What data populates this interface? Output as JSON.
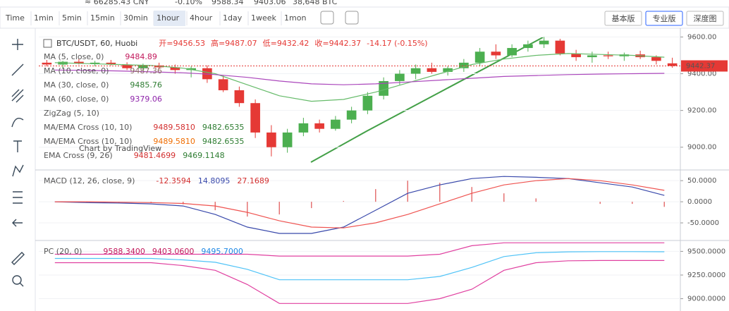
{
  "ticker": [
    "≈ 66285.43 CNY",
    "-0.10%",
    "9588.34",
    "9403.06",
    "38,648 BTC"
  ],
  "toolbar": {
    "timeframes": [
      "Time",
      "1min",
      "5min",
      "15min",
      "30min",
      "1hour",
      "4hour",
      "1day",
      "1week",
      "1mon"
    ],
    "active": "1hour",
    "versions": [
      "基本版",
      "专业版",
      "深度图"
    ],
    "active_version": "专业版"
  },
  "chart": {
    "type": "candlestick",
    "symbol": "BTC/USDT, 60, Huobi",
    "ohlc_legend": [
      {
        "text": "开=9456.53"
      },
      {
        "text": "高=9487.07"
      },
      {
        "text": "低=9432.42"
      },
      {
        "text": "收=9442.37"
      },
      {
        "text": "-14.17 (-0.15%)"
      }
    ],
    "indicators": [
      {
        "label": "MA (5, close, 0)",
        "values": [
          {
            "text": "9484.89",
            "color": "#c2185b"
          }
        ]
      },
      {
        "label": "MA (10, close, 0)",
        "values": [
          {
            "text": "9487.36",
            "color": "#8d6e63"
          }
        ]
      },
      {
        "label": "MA (30, close, 0)",
        "values": [
          {
            "text": "9485.76",
            "color": "#2e7d32"
          }
        ]
      },
      {
        "label": "MA (60, close, 0)",
        "values": [
          {
            "text": "9379.06",
            "color": "#8e24aa"
          }
        ]
      },
      {
        "label": "ZigZag (5, 10)",
        "values": []
      },
      {
        "label": "MA/EMA Cross (10, 10)",
        "values": [
          {
            "text": "9489.5810",
            "color": "#d32f2f"
          },
          {
            "text": "9482.6535",
            "color": "#2e7d32"
          }
        ]
      },
      {
        "label": "MA/EMA Cross (10, 10)",
        "values": [
          {
            "text": "9489.5810",
            "color": "#ef6c00"
          },
          {
            "text": "9482.6535",
            "color": "#2e7d32"
          }
        ]
      },
      {
        "label": "EMA Cross (9, 26)",
        "values": [
          {
            "text": "9481.4699",
            "color": "#d32f2f"
          },
          {
            "text": "9469.1148",
            "color": "#2e7d32"
          }
        ]
      }
    ],
    "watermark": "Chart by TradingView",
    "ylim": [
      8880,
      9640
    ],
    "yticks": [
      {
        "value": 9600,
        "label": "9600.00"
      },
      {
        "value": 9400,
        "label": "9400.00"
      },
      {
        "value": 9200,
        "label": "9200.00"
      },
      {
        "value": 9000,
        "label": "9000.00"
      }
    ],
    "last_price": {
      "value": 9442.37,
      "label": "9442.37"
    },
    "up_color": "#4caf50",
    "down_color": "#e53935",
    "candles": [
      [
        9460,
        9475,
        9440,
        9450
      ],
      [
        9450,
        9470,
        9430,
        9465
      ],
      [
        9465,
        9480,
        9450,
        9455
      ],
      [
        9455,
        9470,
        9440,
        9460
      ],
      [
        9460,
        9475,
        9445,
        9450
      ],
      [
        9450,
        9462,
        9420,
        9430
      ],
      [
        9430,
        9455,
        9415,
        9445
      ],
      [
        9445,
        9460,
        9425,
        9435
      ],
      [
        9435,
        9450,
        9400,
        9420
      ],
      [
        9420,
        9440,
        9380,
        9430
      ],
      [
        9430,
        9445,
        9350,
        9370
      ],
      [
        9370,
        9390,
        9300,
        9310
      ],
      [
        9310,
        9330,
        9220,
        9240
      ],
      [
        9240,
        9260,
        9050,
        9080
      ],
      [
        9080,
        9120,
        8950,
        9000
      ],
      [
        9000,
        9100,
        8970,
        9080
      ],
      [
        9080,
        9160,
        9060,
        9130
      ],
      [
        9130,
        9150,
        9080,
        9100
      ],
      [
        9100,
        9170,
        9090,
        9150
      ],
      [
        9150,
        9220,
        9130,
        9200
      ],
      [
        9200,
        9300,
        9180,
        9280
      ],
      [
        9280,
        9380,
        9260,
        9360
      ],
      [
        9360,
        9420,
        9340,
        9400
      ],
      [
        9400,
        9450,
        9370,
        9430
      ],
      [
        9430,
        9460,
        9400,
        9410
      ],
      [
        9410,
        9440,
        9390,
        9430
      ],
      [
        9430,
        9480,
        9410,
        9460
      ],
      [
        9460,
        9540,
        9440,
        9520
      ],
      [
        9520,
        9560,
        9480,
        9500
      ],
      [
        9500,
        9560,
        9490,
        9540
      ],
      [
        9540,
        9580,
        9520,
        9560
      ],
      [
        9560,
        9600,
        9540,
        9580
      ],
      [
        9580,
        9590,
        9500,
        9510
      ],
      [
        9510,
        9530,
        9470,
        9490
      ],
      [
        9490,
        9520,
        9460,
        9500
      ],
      [
        9500,
        9520,
        9480,
        9495
      ],
      [
        9495,
        9515,
        9470,
        9505
      ],
      [
        9505,
        9525,
        9480,
        9490
      ],
      [
        9490,
        9500,
        9450,
        9470
      ],
      [
        9456.53,
        9487.07,
        9432.42,
        9442.37
      ]
    ],
    "series": [
      {
        "name": "MA (30, close, 0)",
        "color": "#66bb6a",
        "values": [
          9460,
          9455,
          9450,
          9445,
          9430,
          9400,
          9340,
          9280,
          9250,
          9260,
          9300,
          9350,
          9400,
          9450,
          9480,
          9500,
          9510,
          9505,
          9500,
          9490
        ]
      },
      {
        "name": "MA (60, close, 0)",
        "color": "#ab47bc",
        "values": [
          9420,
          9418,
          9415,
          9410,
          9405,
          9395,
          9380,
          9360,
          9345,
          9340,
          9345,
          9355,
          9365,
          9375,
          9385,
          9390,
          9395,
          9398,
          9400,
          9402
        ]
      }
    ]
  },
  "macd": {
    "type": "line",
    "label": "MACD (12, 26, close, 9)",
    "values": [
      {
        "text": "-12.3594",
        "color": "#d32f2f"
      },
      {
        "text": "14.8095",
        "color": "#3949ab"
      },
      {
        "text": "27.1689",
        "color": "#d32f2f"
      }
    ],
    "ylim": [
      -90,
      72
    ],
    "yticks": [
      {
        "value": 50,
        "label": "50.0000"
      },
      {
        "value": 0,
        "label": "0.0000"
      },
      {
        "value": -50,
        "label": "-50.0000"
      }
    ],
    "histogram": {
      "color": "#e57373",
      "values": [
        0,
        -2,
        -2,
        -3,
        -6,
        -20,
        -35,
        -30,
        -15,
        2,
        30,
        50,
        45,
        35,
        20,
        8,
        0,
        -5,
        -5,
        -12
      ]
    },
    "series": [
      {
        "name": "MACD",
        "color": "#3949ab",
        "values": [
          0,
          -2,
          -3,
          -5,
          -10,
          -30,
          -60,
          -75,
          -75,
          -60,
          -20,
          20,
          40,
          55,
          60,
          58,
          55,
          45,
          35,
          15
        ]
      },
      {
        "name": "Signal",
        "color": "#ef5350",
        "values": [
          0,
          0,
          -1,
          -2,
          -4,
          -10,
          -25,
          -45,
          -60,
          -62,
          -50,
          -30,
          -5,
          20,
          40,
          50,
          55,
          50,
          40,
          27
        ]
      }
    ]
  },
  "pc": {
    "type": "line",
    "label": "PC (20, 0)",
    "values": [
      {
        "text": "9588.3400",
        "color": "#c2185b"
      },
      {
        "text": "9403.0600",
        "color": "#c2185b"
      },
      {
        "text": "9495.7000",
        "color": "#1e88e5"
      }
    ],
    "ylim": [
      8870,
      9600
    ],
    "yticks": [
      {
        "value": 9500,
        "label": "9500.0000"
      },
      {
        "value": 9250,
        "label": "9250.0000"
      },
      {
        "value": 9000,
        "label": "9000.0000"
      }
    ],
    "series": [
      {
        "name": "Upper",
        "color": "#e040a0",
        "values": [
          9470,
          9470,
          9470,
          9470,
          9470,
          9470,
          9470,
          9450,
          9450,
          9450,
          9450,
          9450,
          9470,
          9560,
          9590,
          9590,
          9590,
          9590,
          9590,
          9590
        ]
      },
      {
        "name": "Lower",
        "color": "#e040a0",
        "values": [
          9380,
          9380,
          9380,
          9380,
          9350,
          9300,
          9150,
          8950,
          8950,
          8950,
          8950,
          8950,
          9000,
          9100,
          9300,
          9380,
          9400,
          9403,
          9403,
          9403
        ]
      },
      {
        "name": "Middle",
        "color": "#4fc3f7",
        "values": [
          9425,
          9425,
          9425,
          9425,
          9410,
          9385,
          9310,
          9200,
          9200,
          9200,
          9200,
          9200,
          9235,
          9330,
          9445,
          9485,
          9495,
          9497,
          9497,
          9496
        ]
      }
    ]
  }
}
